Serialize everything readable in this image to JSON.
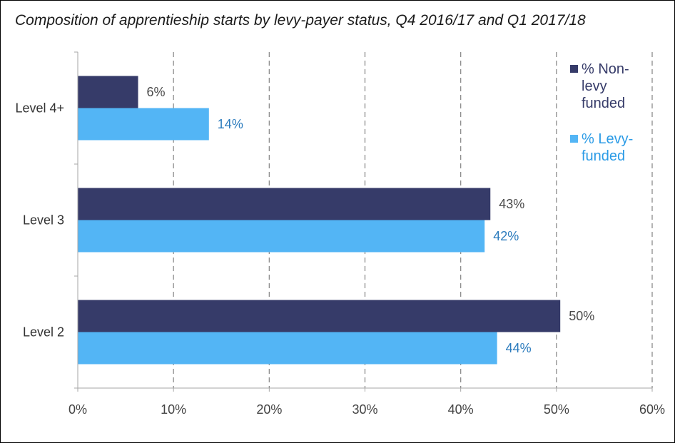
{
  "chart_data": {
    "type": "bar",
    "orientation": "horizontal",
    "title": "Composition of apprentieship starts by levy-payer status, Q4 2016/17 and Q1 2017/18",
    "categories": [
      "Level 4+",
      "Level 3",
      "Level 2"
    ],
    "series": [
      {
        "name": "% Non-levy funded",
        "color": "#363b69",
        "label_color": "#4a4a4a",
        "values": [
          6.3,
          43.1,
          50.4
        ],
        "labels": [
          "6%",
          "43%",
          "50%"
        ]
      },
      {
        "name": "% Levy-funded",
        "color": "#53b5f5",
        "label_color": "#2b7bbd",
        "values": [
          13.7,
          42.5,
          43.8
        ],
        "labels": [
          "14%",
          "42%",
          "44%"
        ]
      }
    ],
    "xlim": [
      0,
      60
    ],
    "xticks": [
      0,
      10,
      20,
      30,
      40,
      50,
      60
    ],
    "xtick_labels": [
      "0%",
      "10%",
      "20%",
      "30%",
      "40%",
      "50%",
      "60%"
    ],
    "xlabel": "",
    "ylabel": "",
    "grid": "vertical dashed",
    "legend_position": "right"
  }
}
